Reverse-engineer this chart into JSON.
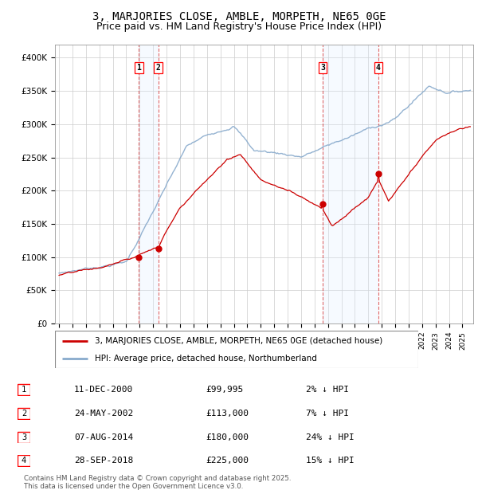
{
  "title": "3, MARJORIES CLOSE, AMBLE, MORPETH, NE65 0GE",
  "subtitle": "Price paid vs. HM Land Registry's House Price Index (HPI)",
  "ylim": [
    0,
    420000
  ],
  "yticks": [
    0,
    50000,
    100000,
    150000,
    200000,
    250000,
    300000,
    350000,
    400000
  ],
  "ytick_labels": [
    "£0",
    "£50K",
    "£100K",
    "£150K",
    "£200K",
    "£250K",
    "£300K",
    "£350K",
    "£400K"
  ],
  "background_color": "#ffffff",
  "grid_color": "#cccccc",
  "sale_color": "#cc0000",
  "hpi_color": "#88aacc",
  "shade_color": "#ddeeff",
  "transactions": [
    {
      "num": 1,
      "date": "11-DEC-2000",
      "price": 99995,
      "year": 2000.94,
      "pct": "2%",
      "dir": "↓"
    },
    {
      "num": 2,
      "date": "24-MAY-2002",
      "price": 113000,
      "year": 2002.39,
      "pct": "7%",
      "dir": "↓"
    },
    {
      "num": 3,
      "date": "07-AUG-2014",
      "price": 180000,
      "year": 2014.6,
      "pct": "24%",
      "dir": "↓"
    },
    {
      "num": 4,
      "date": "28-SEP-2018",
      "price": 225000,
      "year": 2018.75,
      "pct": "15%",
      "dir": "↓"
    }
  ],
  "vline_pairs": [
    [
      2000.94,
      2002.39
    ],
    [
      2014.6,
      2018.75
    ]
  ],
  "legend_sale": "3, MARJORIES CLOSE, AMBLE, MORPETH, NE65 0GE (detached house)",
  "legend_hpi": "HPI: Average price, detached house, Northumberland",
  "footnote": "Contains HM Land Registry data © Crown copyright and database right 2025.\nThis data is licensed under the Open Government Licence v3.0.",
  "title_fontsize": 10,
  "subtitle_fontsize": 9,
  "tick_fontsize": 7.5,
  "legend_fontsize": 7.5,
  "table_fontsize": 8
}
